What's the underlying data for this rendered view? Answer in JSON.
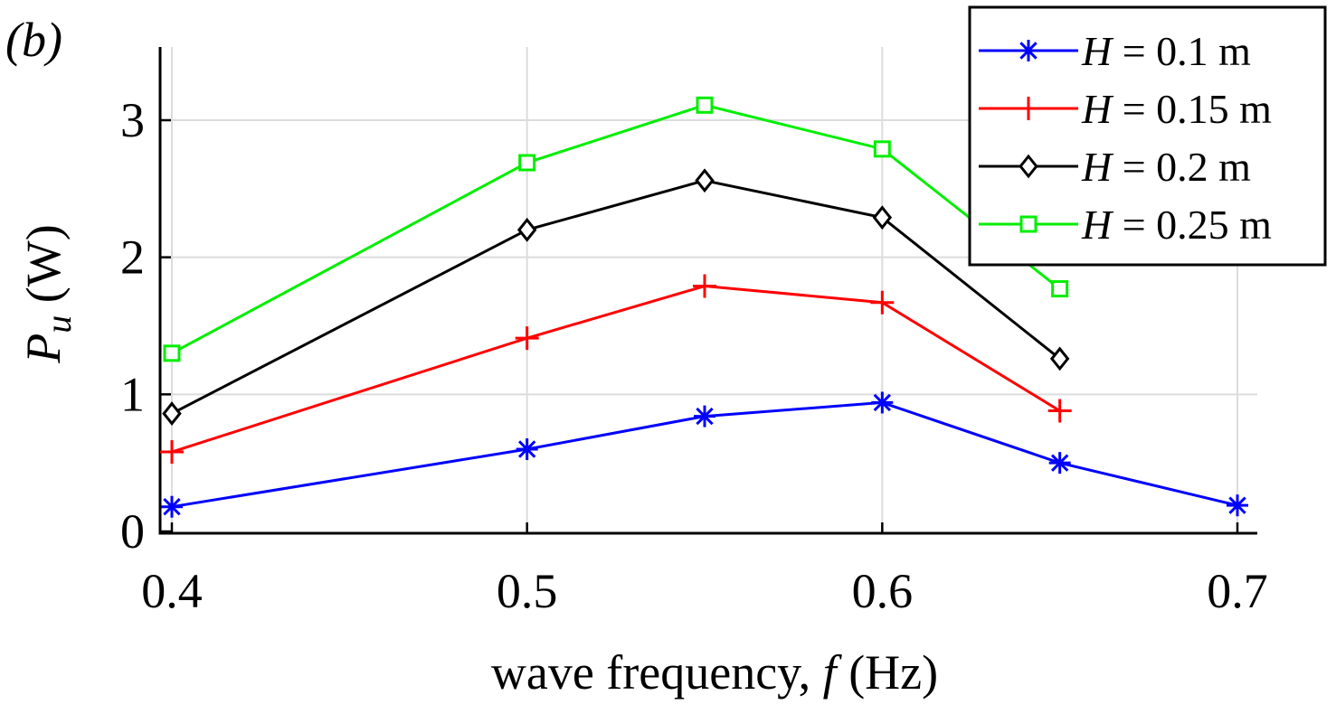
{
  "panel_label": "(b)",
  "chart_data": {
    "type": "line",
    "title": "",
    "xlabel_prefix": "wave frequency, ",
    "xlabel_var": "f",
    "xlabel_unit": " (Hz)",
    "ylabel_var": "P",
    "ylabel_sub": "u",
    "ylabel_unit": " (W)",
    "xlim": [
      0.4,
      0.7
    ],
    "ylim": [
      0,
      3.5
    ],
    "xticks": [
      0.4,
      0.5,
      0.6,
      0.7
    ],
    "xtick_labels": [
      "0.4",
      "0.5",
      "0.6",
      "0.7"
    ],
    "yticks": [
      0,
      1,
      2,
      3
    ],
    "ytick_labels": [
      "0",
      "1",
      "2",
      "3"
    ],
    "grid": true,
    "legend_position": "top-right",
    "series": [
      {
        "name_var": "H",
        "name_rest": " = 0.1 m",
        "color": "#0000ff",
        "marker": "asterisk",
        "x": [
          0.4,
          0.5,
          0.55,
          0.6,
          0.65,
          0.7
        ],
        "y": [
          0.18,
          0.6,
          0.84,
          0.94,
          0.5,
          0.19
        ]
      },
      {
        "name_var": "H",
        "name_rest": " = 0.15 m",
        "color": "#ff0000",
        "marker": "plus",
        "x": [
          0.4,
          0.5,
          0.55,
          0.6,
          0.65
        ],
        "y": [
          0.58,
          1.41,
          1.79,
          1.67,
          0.88
        ]
      },
      {
        "name_var": "H",
        "name_rest": " = 0.2 m",
        "color": "#000000",
        "marker": "diamond",
        "x": [
          0.4,
          0.5,
          0.55,
          0.6,
          0.65
        ],
        "y": [
          0.86,
          2.2,
          2.56,
          2.29,
          1.26
        ]
      },
      {
        "name_var": "H",
        "name_rest": " = 0.25 m",
        "color": "#00ee00",
        "marker": "square",
        "x": [
          0.4,
          0.5,
          0.55,
          0.6,
          0.65
        ],
        "y": [
          1.3,
          2.69,
          3.11,
          2.79,
          1.77
        ]
      }
    ]
  }
}
